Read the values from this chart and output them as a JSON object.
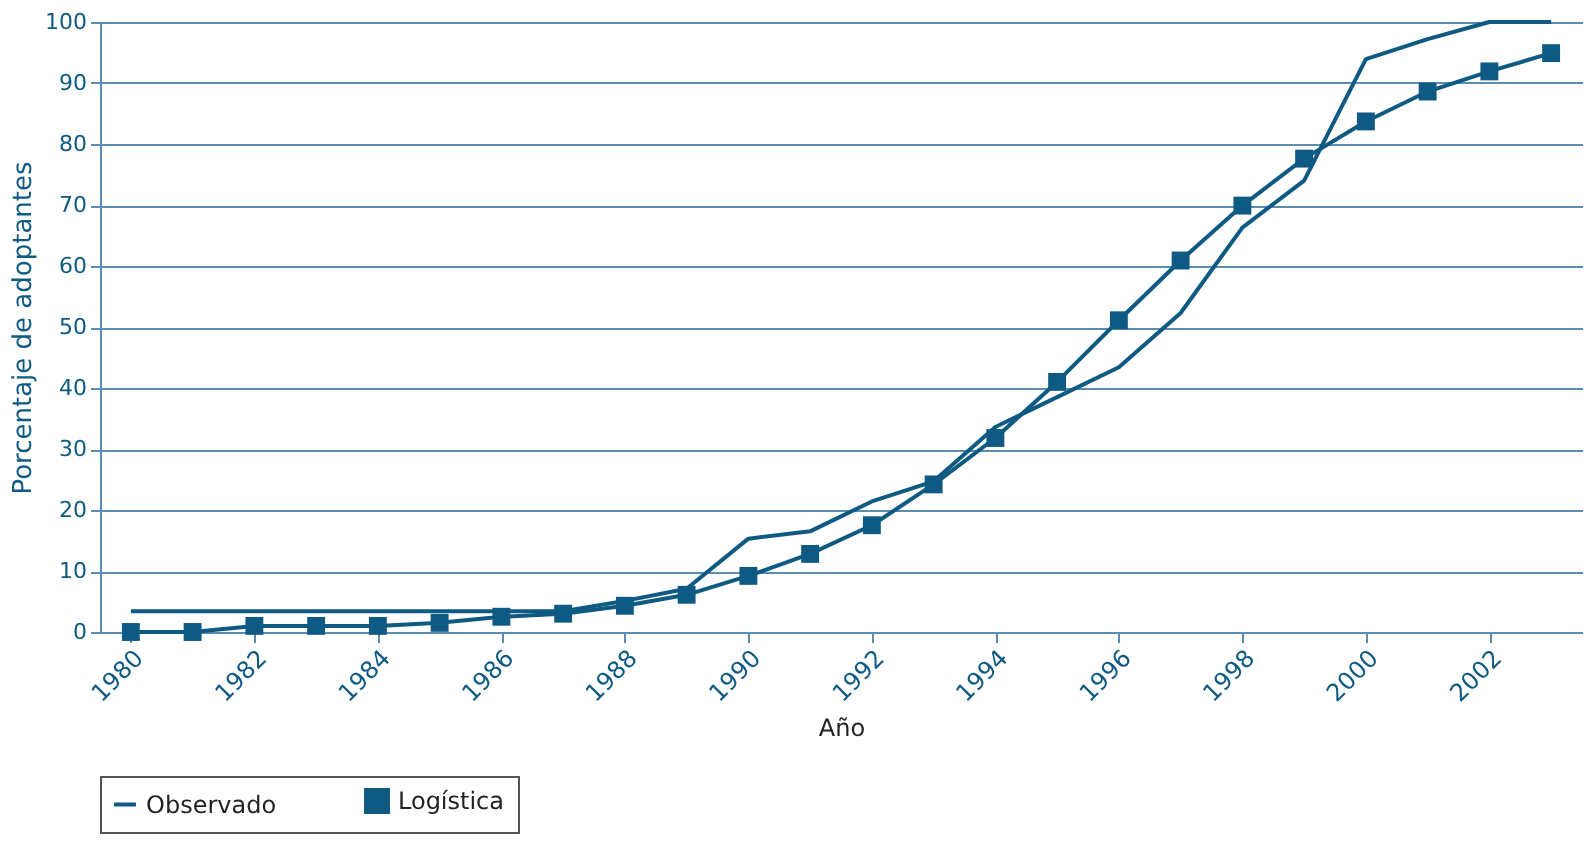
{
  "chart_data": {
    "type": "line",
    "xlabel": "Año",
    "ylabel": "Porcentaje de adoptantes",
    "x": [
      1980,
      1981,
      1982,
      1983,
      1984,
      1985,
      1986,
      1987,
      1988,
      1989,
      1990,
      1991,
      1992,
      1993,
      1994,
      1995,
      1996,
      1997,
      1998,
      1999,
      2000,
      2001,
      2002,
      2003
    ],
    "series": [
      {
        "name": "Observado",
        "color": "#0e5a82",
        "marker": "none",
        "values": [
          3.4,
          3.4,
          3.4,
          3.4,
          3.4,
          3.4,
          3.4,
          3.4,
          5.1,
          7.1,
          15.3,
          16.5,
          21.4,
          24.7,
          33.6,
          38.5,
          43.4,
          52.3,
          66.3,
          74,
          93.9,
          97.2,
          100,
          100
        ]
      },
      {
        "name": "Logística",
        "color": "#0e5a82",
        "marker": "square",
        "values": [
          0,
          0,
          1,
          1,
          1,
          1.5,
          2.5,
          3,
          4.3,
          6.1,
          9.2,
          12.8,
          17.5,
          24.2,
          31.8,
          41,
          51.1,
          60.9,
          69.9,
          77.6,
          83.7,
          88.6,
          91.9,
          94.9
        ]
      }
    ],
    "xlim": [
      1979.5,
      2003.5
    ],
    "xticks": [
      1980,
      1982,
      1984,
      1986,
      1988,
      1990,
      1992,
      1994,
      1996,
      1998,
      2000,
      2002
    ],
    "ylim": [
      0,
      100
    ],
    "yticks": [
      0,
      10,
      20,
      30,
      40,
      50,
      60,
      70,
      80,
      90,
      100
    ],
    "grid": "y",
    "legend": "bottom",
    "line_style": "solid"
  }
}
